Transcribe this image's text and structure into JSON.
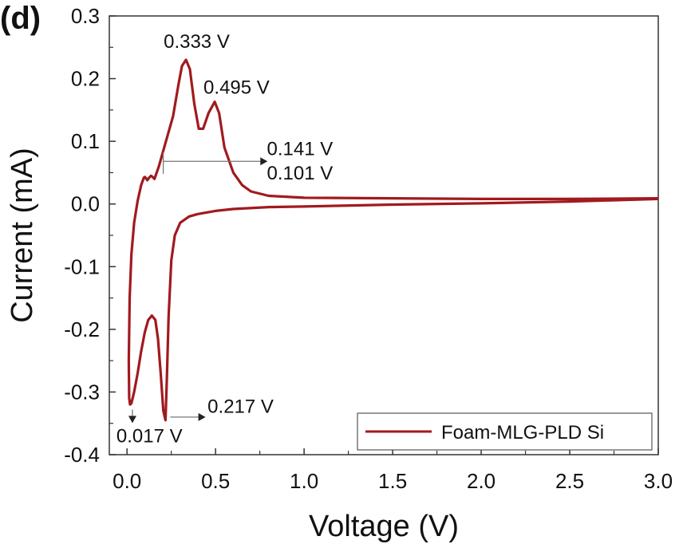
{
  "panel_label": "(d)",
  "chart_data": {
    "type": "line",
    "title": "",
    "xlabel": "Voltage (V)",
    "ylabel": "Current (mA)",
    "xlim": [
      -0.1,
      3.0
    ],
    "ylim": [
      -0.4,
      0.3
    ],
    "xticks": [
      0.0,
      0.5,
      1.0,
      1.5,
      2.0,
      2.5,
      3.0
    ],
    "xtick_labels": [
      "0.0",
      "0.5",
      "1.0",
      "1.5",
      "2.0",
      "2.5",
      "3.0"
    ],
    "yticks": [
      -0.4,
      -0.3,
      -0.2,
      -0.1,
      0.0,
      0.1,
      0.2,
      0.3
    ],
    "ytick_labels": [
      "-0.4",
      "-0.3",
      "-0.2",
      "-0.1",
      "0.0",
      "0.1",
      "0.2",
      "0.3"
    ],
    "grid": false,
    "legend_position": "bottom-right",
    "series": [
      {
        "name": "Foam-MLG-PLD Si",
        "color": "#a11a1e",
        "points": [
          [
            3.0,
            0.008
          ],
          [
            2.5,
            0.004
          ],
          [
            2.0,
            0.001
          ],
          [
            1.5,
            -0.001
          ],
          [
            1.0,
            -0.004
          ],
          [
            0.8,
            -0.005
          ],
          [
            0.6,
            -0.008
          ],
          [
            0.5,
            -0.011
          ],
          [
            0.4,
            -0.016
          ],
          [
            0.35,
            -0.02
          ],
          [
            0.3,
            -0.03
          ],
          [
            0.27,
            -0.05
          ],
          [
            0.25,
            -0.09
          ],
          [
            0.235,
            -0.18
          ],
          [
            0.225,
            -0.28
          ],
          [
            0.217,
            -0.345
          ],
          [
            0.205,
            -0.33
          ],
          [
            0.19,
            -0.27
          ],
          [
            0.175,
            -0.215
          ],
          [
            0.16,
            -0.185
          ],
          [
            0.14,
            -0.178
          ],
          [
            0.12,
            -0.185
          ],
          [
            0.1,
            -0.205
          ],
          [
            0.08,
            -0.235
          ],
          [
            0.06,
            -0.27
          ],
          [
            0.04,
            -0.3
          ],
          [
            0.025,
            -0.318
          ],
          [
            0.017,
            -0.32
          ],
          [
            0.012,
            -0.31
          ],
          [
            0.01,
            -0.25
          ],
          [
            0.015,
            -0.15
          ],
          [
            0.025,
            -0.08
          ],
          [
            0.04,
            -0.03
          ],
          [
            0.06,
            0.005
          ],
          [
            0.08,
            0.03
          ],
          [
            0.095,
            0.042
          ],
          [
            0.101,
            0.043
          ],
          [
            0.115,
            0.038
          ],
          [
            0.125,
            0.042
          ],
          [
            0.135,
            0.045
          ],
          [
            0.141,
            0.044
          ],
          [
            0.155,
            0.04
          ],
          [
            0.18,
            0.06
          ],
          [
            0.22,
            0.1
          ],
          [
            0.26,
            0.14
          ],
          [
            0.29,
            0.19
          ],
          [
            0.31,
            0.22
          ],
          [
            0.333,
            0.23
          ],
          [
            0.355,
            0.215
          ],
          [
            0.38,
            0.16
          ],
          [
            0.405,
            0.12
          ],
          [
            0.43,
            0.12
          ],
          [
            0.46,
            0.145
          ],
          [
            0.495,
            0.163
          ],
          [
            0.52,
            0.145
          ],
          [
            0.55,
            0.09
          ],
          [
            0.6,
            0.05
          ],
          [
            0.65,
            0.03
          ],
          [
            0.7,
            0.02
          ],
          [
            0.8,
            0.013
          ],
          [
            1.0,
            0.01
          ],
          [
            1.5,
            0.009
          ],
          [
            2.0,
            0.008
          ],
          [
            2.5,
            0.008
          ],
          [
            3.0,
            0.009
          ]
        ]
      }
    ],
    "annotations": [
      {
        "text": "0.333 V",
        "x": 0.333,
        "y": 0.23,
        "arrow": "none"
      },
      {
        "text": "0.495 V",
        "x": 0.495,
        "y": 0.163,
        "arrow": "none"
      },
      {
        "text": "0.141 V",
        "x": 0.141,
        "y": 0.044,
        "arrow": "right"
      },
      {
        "text": "0.101 V",
        "x": 0.101,
        "y": 0.043,
        "arrow": "right"
      },
      {
        "text": "0.217 V",
        "x": 0.217,
        "y": -0.345,
        "arrow": "right"
      },
      {
        "text": "0.017 V",
        "x": 0.017,
        "y": -0.32,
        "arrow": "down"
      }
    ]
  }
}
